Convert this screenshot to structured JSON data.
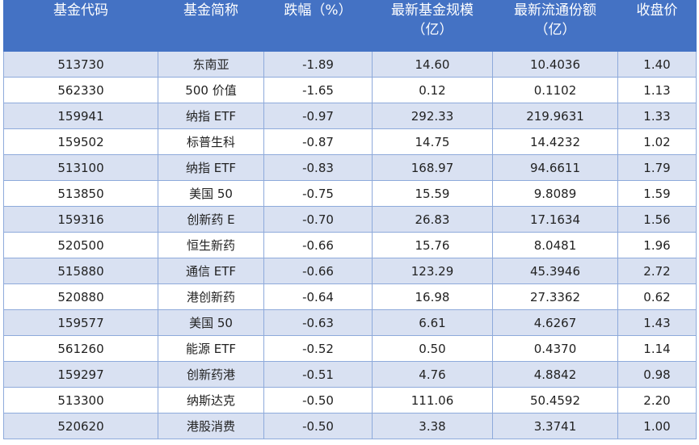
{
  "headers": [
    [
      "基金代码"
    ],
    [
      "基金简称"
    ],
    [
      "跌幅（%）"
    ],
    [
      "最新基金规模",
      "（亿）"
    ],
    [
      "最新流通份额",
      "（亿）"
    ],
    [
      "收盘价"
    ]
  ],
  "rows": [
    [
      "513730",
      "东南亚",
      "-1.89",
      "14.60",
      "10.4036",
      "1.40"
    ],
    [
      "562330",
      "500 价值",
      "-1.65",
      "0.12",
      "0.1102",
      "1.13"
    ],
    [
      "159941",
      "纳指 ETF",
      "-0.97",
      "292.33",
      "219.9631",
      "1.33"
    ],
    [
      "159502",
      "标普生科",
      "-0.87",
      "14.75",
      "14.4232",
      "1.02"
    ],
    [
      "513100",
      "纳指 ETF",
      "-0.83",
      "168.97",
      "94.6611",
      "1.79"
    ],
    [
      "513850",
      "美国 50",
      "-0.75",
      "15.59",
      "9.8089",
      "1.59"
    ],
    [
      "159316",
      "创新药 E",
      "-0.70",
      "26.83",
      "17.1634",
      "1.56"
    ],
    [
      "520500",
      "恒生新药",
      "-0.66",
      "15.76",
      "8.0481",
      "1.96"
    ],
    [
      "515880",
      "通信 ETF",
      "-0.66",
      "123.29",
      "45.3946",
      "2.72"
    ],
    [
      "520880",
      "港创新药",
      "-0.64",
      "16.98",
      "27.3362",
      "0.62"
    ],
    [
      "159577",
      "美国 50",
      "-0.63",
      "6.61",
      "4.6267",
      "1.43"
    ],
    [
      "561260",
      "能源 ETF",
      "-0.52",
      "0.50",
      "0.4370",
      "1.14"
    ],
    [
      "159297",
      "创新药港",
      "-0.51",
      "4.76",
      "4.8842",
      "0.98"
    ],
    [
      "513300",
      "纳斯达克",
      "-0.50",
      "111.06",
      "50.4592",
      "2.20"
    ],
    [
      "520620",
      "港股消费",
      "-0.50",
      "3.38",
      "3.3741",
      "1.00"
    ]
  ],
  "colors": {
    "header_bg": "#4472c4",
    "header_text": "#ffffff",
    "band_bg": "#d9e1f2",
    "grid": "#8eaadb"
  }
}
